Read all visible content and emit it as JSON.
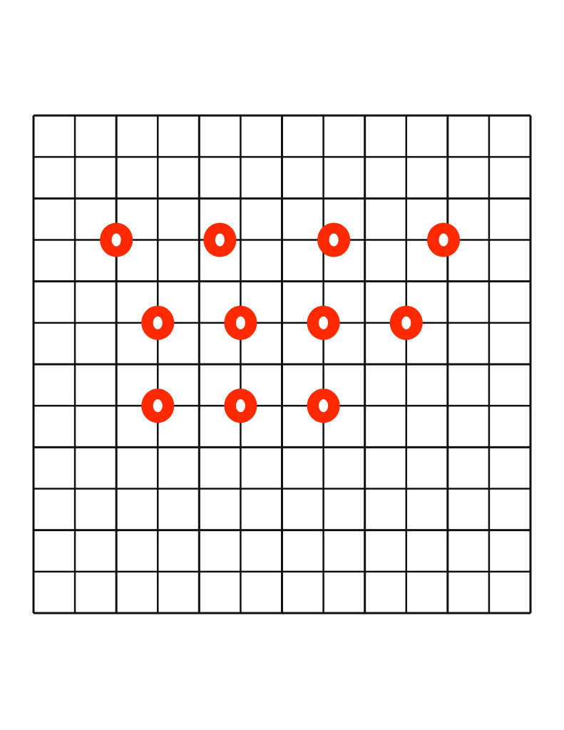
{
  "board": {
    "columns": 12,
    "rows": 12,
    "line_color": "#111111",
    "marker_color": "#ff2a00",
    "marker_hole_color": "#ffffff",
    "markers": [
      {
        "col": 2,
        "row": 3
      },
      {
        "col": 4.5,
        "row": 3
      },
      {
        "col": 7.25,
        "row": 3
      },
      {
        "col": 9.9,
        "row": 3
      },
      {
        "col": 3,
        "row": 5
      },
      {
        "col": 5,
        "row": 5
      },
      {
        "col": 7,
        "row": 5
      },
      {
        "col": 9,
        "row": 5
      },
      {
        "col": 3,
        "row": 7
      },
      {
        "col": 5,
        "row": 7
      },
      {
        "col": 7,
        "row": 7
      }
    ]
  }
}
